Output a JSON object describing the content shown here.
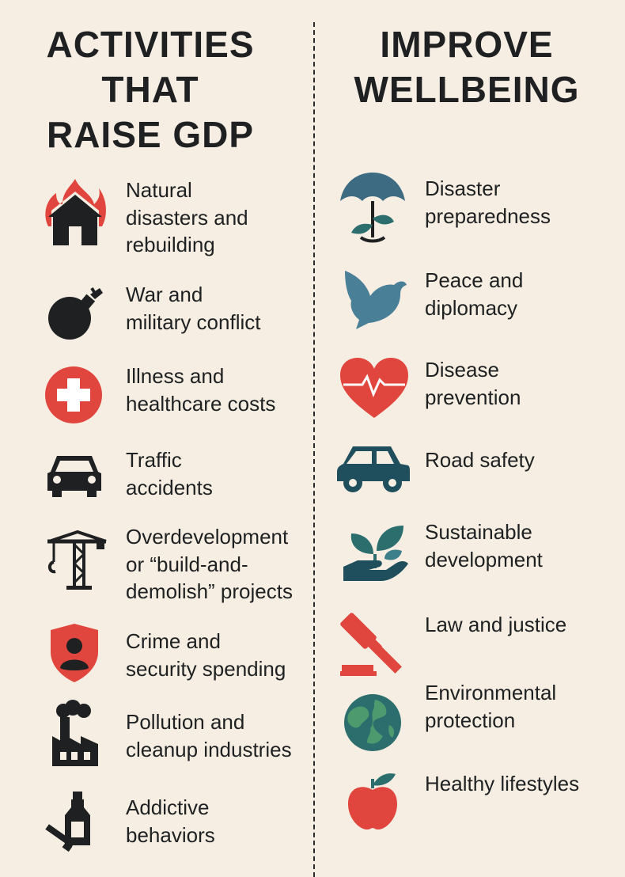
{
  "left_title": [
    "ACTIVITIES",
    "THAT",
    "RAISE GDP"
  ],
  "right_title": [
    "IMPROVE",
    "WELLBEING"
  ],
  "colors": {
    "background": "#f6eee3",
    "dark": "#1e2022",
    "red": "#e0463d",
    "blue": "#3d6b82",
    "teal": "#2c6e6e"
  },
  "left_items": [
    {
      "icon": "house-fire-icon",
      "lines": [
        "Natural",
        "disasters and",
        "rebuilding"
      ]
    },
    {
      "icon": "bomb-icon",
      "lines": [
        "War and",
        "military conflict"
      ]
    },
    {
      "icon": "medical-cross-icon",
      "lines": [
        "Illness and",
        "healthcare costs"
      ]
    },
    {
      "icon": "car-icon",
      "lines": [
        "Traffic",
        "accidents"
      ]
    },
    {
      "icon": "crane-icon",
      "lines": [
        "Overdevelopment",
        "or “build-and-",
        "demolish” projects"
      ]
    },
    {
      "icon": "shield-person-icon",
      "lines": [
        "Crime and",
        "security spending"
      ]
    },
    {
      "icon": "factory-icon",
      "lines": [
        "Pollution and",
        "cleanup industries"
      ]
    },
    {
      "icon": "bottle-cigarette-icon",
      "lines": [
        "Addictive",
        "behaviors"
      ]
    }
  ],
  "right_items": [
    {
      "icon": "umbrella-plant-icon",
      "lines": [
        "Disaster",
        "preparedness"
      ]
    },
    {
      "icon": "dove-icon",
      "lines": [
        "Peace and",
        "diplomacy"
      ]
    },
    {
      "icon": "heart-pulse-icon",
      "lines": [
        "Disease",
        "prevention"
      ]
    },
    {
      "icon": "car-icon",
      "lines": [
        "Road safety"
      ]
    },
    {
      "icon": "sprout-hand-icon",
      "lines": [
        "Sustainable",
        "development"
      ]
    },
    {
      "icon": "gavel-icon",
      "lines": [
        "Law and justice"
      ]
    },
    {
      "icon": "globe-icon",
      "lines": [
        "Environmental",
        "protection"
      ]
    },
    {
      "icon": "apple-icon",
      "lines": [
        "Healthy lifestyles"
      ]
    }
  ]
}
